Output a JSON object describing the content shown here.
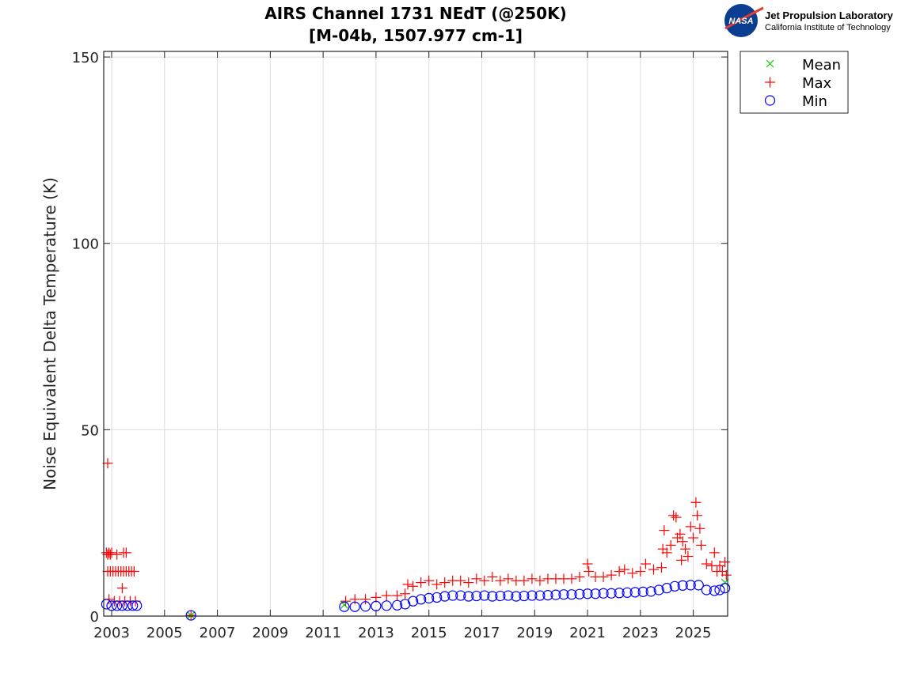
{
  "logo": {
    "org": "Jet Propulsion Laboratory",
    "sub": "California Institute of Technology",
    "badge": "NASA"
  },
  "chart_data": {
    "type": "scatter",
    "title": [
      "AIRS Channel 1731 NEdT (@250K)",
      "[M-04b, 1507.977 cm-1]"
    ],
    "xlabel": "",
    "ylabel": "Noise Equivalent Delta Temperature (K)",
    "xlim": [
      2002.7,
      2026.3
    ],
    "ylim": [
      0,
      151.5
    ],
    "xticks": [
      2003,
      2005,
      2007,
      2009,
      2011,
      2013,
      2015,
      2017,
      2019,
      2021,
      2023,
      2025
    ],
    "yticks": [
      0,
      50,
      100,
      150
    ],
    "grid": true,
    "legend": {
      "placement": "outside-top-right",
      "entries": [
        {
          "name": "Mean",
          "marker": "x",
          "color": "#00cc00"
        },
        {
          "name": "Max",
          "marker": "+",
          "color": "#ff0000"
        },
        {
          "name": "Min",
          "marker": "o",
          "color": "#0000ff"
        }
      ]
    },
    "series": [
      {
        "name": "Max",
        "marker": "+",
        "color": "#ff0000",
        "points": [
          [
            2002.85,
            41
          ],
          [
            2002.8,
            17
          ],
          [
            2002.85,
            16.5
          ],
          [
            2002.9,
            17
          ],
          [
            2002.95,
            16.5
          ],
          [
            2003.0,
            17
          ],
          [
            2003.2,
            16.5
          ],
          [
            2003.45,
            17
          ],
          [
            2003.55,
            17
          ],
          [
            2002.85,
            12
          ],
          [
            2002.95,
            12
          ],
          [
            2003.05,
            12
          ],
          [
            2003.15,
            12
          ],
          [
            2003.25,
            12
          ],
          [
            2003.35,
            12
          ],
          [
            2003.45,
            12
          ],
          [
            2003.55,
            12
          ],
          [
            2003.65,
            12
          ],
          [
            2003.75,
            12
          ],
          [
            2003.85,
            12
          ],
          [
            2003.4,
            7.5
          ],
          [
            2002.9,
            4.5
          ],
          [
            2003.1,
            4
          ],
          [
            2003.3,
            4
          ],
          [
            2003.5,
            4
          ],
          [
            2003.7,
            4
          ],
          [
            2003.9,
            4
          ],
          [
            2006.0,
            0.2
          ],
          [
            2011.85,
            4
          ],
          [
            2012.2,
            4.5
          ],
          [
            2012.6,
            4.5
          ],
          [
            2013.0,
            5
          ],
          [
            2013.4,
            5.5
          ],
          [
            2013.8,
            5.5
          ],
          [
            2014.1,
            6
          ],
          [
            2014.2,
            8.5
          ],
          [
            2014.4,
            8
          ],
          [
            2014.7,
            9
          ],
          [
            2015.0,
            9.5
          ],
          [
            2015.3,
            8.5
          ],
          [
            2015.6,
            9
          ],
          [
            2015.9,
            9.5
          ],
          [
            2016.2,
            9.5
          ],
          [
            2016.5,
            9
          ],
          [
            2016.8,
            10
          ],
          [
            2017.1,
            9.5
          ],
          [
            2017.4,
            10.5
          ],
          [
            2017.7,
            9.5
          ],
          [
            2018.0,
            10
          ],
          [
            2018.3,
            9.5
          ],
          [
            2018.6,
            9.5
          ],
          [
            2018.9,
            10
          ],
          [
            2019.2,
            9.5
          ],
          [
            2019.5,
            10
          ],
          [
            2019.8,
            10
          ],
          [
            2020.1,
            10
          ],
          [
            2020.4,
            10
          ],
          [
            2020.7,
            10.5
          ],
          [
            2021.0,
            14
          ],
          [
            2021.05,
            12
          ],
          [
            2021.3,
            10.5
          ],
          [
            2021.6,
            10.5
          ],
          [
            2021.9,
            11
          ],
          [
            2022.2,
            12
          ],
          [
            2022.4,
            12.5
          ],
          [
            2022.7,
            11.5
          ],
          [
            2023.0,
            12
          ],
          [
            2023.2,
            14
          ],
          [
            2023.5,
            12.5
          ],
          [
            2023.8,
            13
          ],
          [
            2023.85,
            18
          ],
          [
            2023.9,
            23
          ],
          [
            2024.0,
            17
          ],
          [
            2024.15,
            19
          ],
          [
            2024.25,
            27
          ],
          [
            2024.35,
            26.5
          ],
          [
            2024.4,
            21
          ],
          [
            2024.5,
            22
          ],
          [
            2024.55,
            15
          ],
          [
            2024.6,
            20
          ],
          [
            2024.7,
            18
          ],
          [
            2024.8,
            16
          ],
          [
            2024.9,
            24
          ],
          [
            2025.0,
            21
          ],
          [
            2025.1,
            30.5
          ],
          [
            2025.15,
            27
          ],
          [
            2025.25,
            23.5
          ],
          [
            2025.3,
            19
          ],
          [
            2025.5,
            14
          ],
          [
            2025.7,
            13.5
          ],
          [
            2025.8,
            17
          ],
          [
            2025.9,
            12
          ],
          [
            2026.0,
            13.5
          ],
          [
            2026.1,
            12
          ],
          [
            2026.2,
            14.5
          ],
          [
            2026.25,
            11
          ]
        ]
      },
      {
        "name": "Mean",
        "marker": "x",
        "color": "#00cc00",
        "points": [
          [
            2006.0,
            0.2
          ],
          [
            2011.8,
            3
          ],
          [
            2026.2,
            9
          ]
        ]
      },
      {
        "name": "Min",
        "marker": "o",
        "color": "#0000ff",
        "points": [
          [
            2002.8,
            3.2
          ],
          [
            2003.0,
            2.8
          ],
          [
            2003.2,
            2.8
          ],
          [
            2003.4,
            2.8
          ],
          [
            2003.6,
            2.8
          ],
          [
            2003.8,
            2.8
          ],
          [
            2003.95,
            2.8
          ],
          [
            2006.0,
            0.2
          ],
          [
            2011.8,
            2.5
          ],
          [
            2012.2,
            2.5
          ],
          [
            2012.6,
            2.6
          ],
          [
            2013.0,
            2.7
          ],
          [
            2013.4,
            2.8
          ],
          [
            2013.8,
            2.9
          ],
          [
            2014.1,
            3.2
          ],
          [
            2014.4,
            4
          ],
          [
            2014.7,
            4.5
          ],
          [
            2015.0,
            4.8
          ],
          [
            2015.3,
            5
          ],
          [
            2015.6,
            5.3
          ],
          [
            2015.9,
            5.5
          ],
          [
            2016.2,
            5.5
          ],
          [
            2016.5,
            5.3
          ],
          [
            2016.8,
            5.4
          ],
          [
            2017.1,
            5.5
          ],
          [
            2017.4,
            5.3
          ],
          [
            2017.7,
            5.4
          ],
          [
            2018.0,
            5.5
          ],
          [
            2018.3,
            5.3
          ],
          [
            2018.6,
            5.4
          ],
          [
            2018.9,
            5.5
          ],
          [
            2019.2,
            5.5
          ],
          [
            2019.5,
            5.6
          ],
          [
            2019.8,
            5.7
          ],
          [
            2020.1,
            5.8
          ],
          [
            2020.4,
            5.8
          ],
          [
            2020.7,
            5.9
          ],
          [
            2021.0,
            6
          ],
          [
            2021.3,
            6
          ],
          [
            2021.6,
            6.1
          ],
          [
            2021.9,
            6.1
          ],
          [
            2022.2,
            6.2
          ],
          [
            2022.5,
            6.3
          ],
          [
            2022.8,
            6.4
          ],
          [
            2023.1,
            6.5
          ],
          [
            2023.4,
            6.6
          ],
          [
            2023.7,
            7
          ],
          [
            2024.0,
            7.5
          ],
          [
            2024.3,
            8
          ],
          [
            2024.6,
            8.2
          ],
          [
            2024.9,
            8.3
          ],
          [
            2025.2,
            8.3
          ],
          [
            2025.5,
            7
          ],
          [
            2025.8,
            6.8
          ],
          [
            2026.0,
            7
          ],
          [
            2026.2,
            7.5
          ]
        ]
      }
    ]
  }
}
